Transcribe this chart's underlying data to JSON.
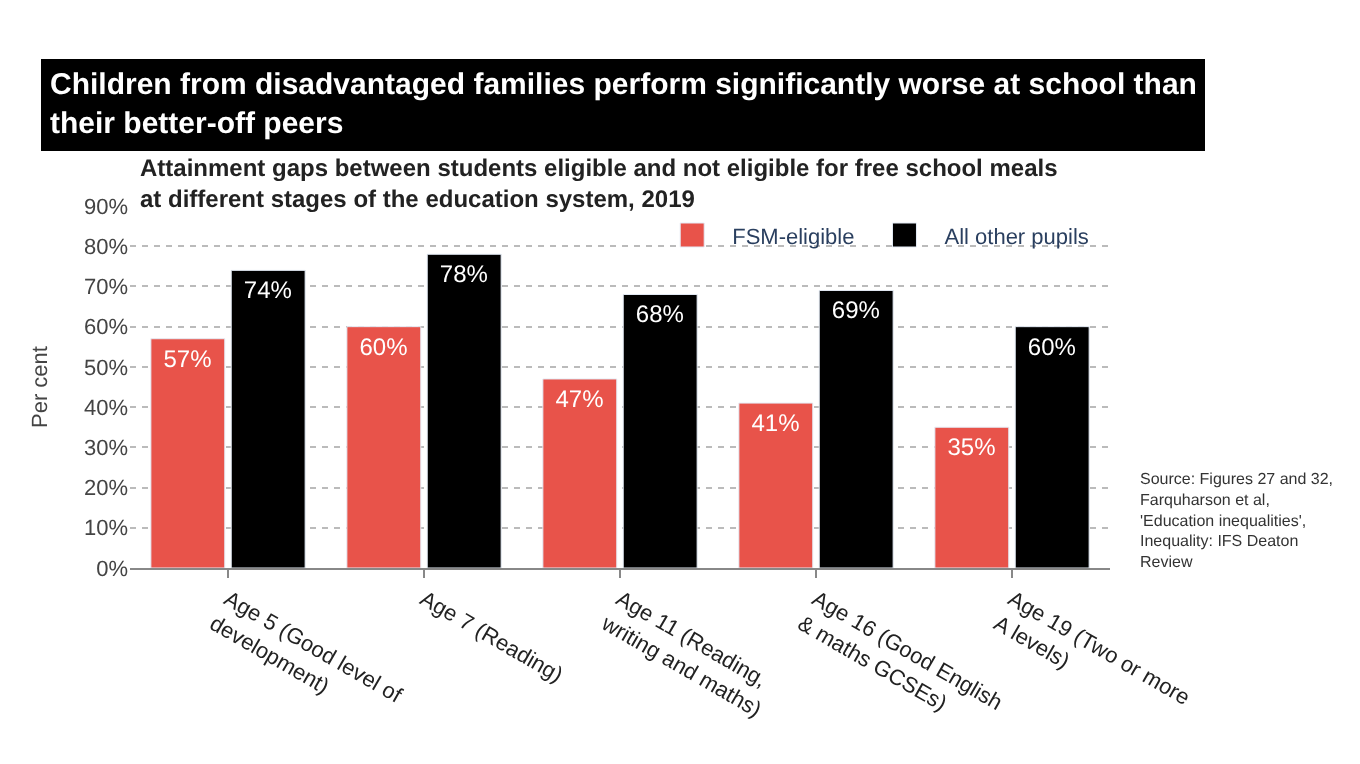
{
  "chart_data": {
    "type": "bar",
    "title": "Children from disadvantaged families perform significantly worse at school than their better-off peers",
    "subtitle": "Attainment gaps between students eligible and not eligible for free school meals at different stages of the education system, 2019",
    "ylabel": "Per cent",
    "categories": [
      "Age 5 (Good level of development)",
      "Age 7 (Reading)",
      "Age 11 (Reading, writing and maths)",
      "Age 16 (Good English & maths GCSEs)",
      "Age 19 (Two or more A levels)"
    ],
    "series": [
      {
        "name": "FSM-eligible",
        "color": "#e8534a",
        "values": [
          57,
          60,
          47,
          41,
          35
        ],
        "value_labels": [
          "57%",
          "60%",
          "47%",
          "41%",
          "35%"
        ]
      },
      {
        "name": "All other pupils",
        "color": "#000000",
        "values": [
          74,
          78,
          68,
          69,
          60
        ],
        "value_labels": [
          "74%",
          "78%",
          "68%",
          "69%",
          "60%"
        ]
      }
    ],
    "ylim": [
      0,
      90
    ],
    "yticks": [
      {
        "value": 0,
        "label": "0%"
      },
      {
        "value": 10,
        "label": "10%"
      },
      {
        "value": 20,
        "label": "20%"
      },
      {
        "value": 30,
        "label": "30%"
      },
      {
        "value": 40,
        "label": "40%"
      },
      {
        "value": 50,
        "label": "50%"
      },
      {
        "value": 60,
        "label": "60%"
      },
      {
        "value": 70,
        "label": "70%"
      },
      {
        "value": 80,
        "label": "80%"
      },
      {
        "value": 90,
        "label": "90%"
      }
    ],
    "grid": "y",
    "legend": "top right",
    "annotations": [
      "Source: Figures 27 and 32, Farquharson et al, 'Education inequalities', Inequality: IFS Deaton Review"
    ]
  }
}
